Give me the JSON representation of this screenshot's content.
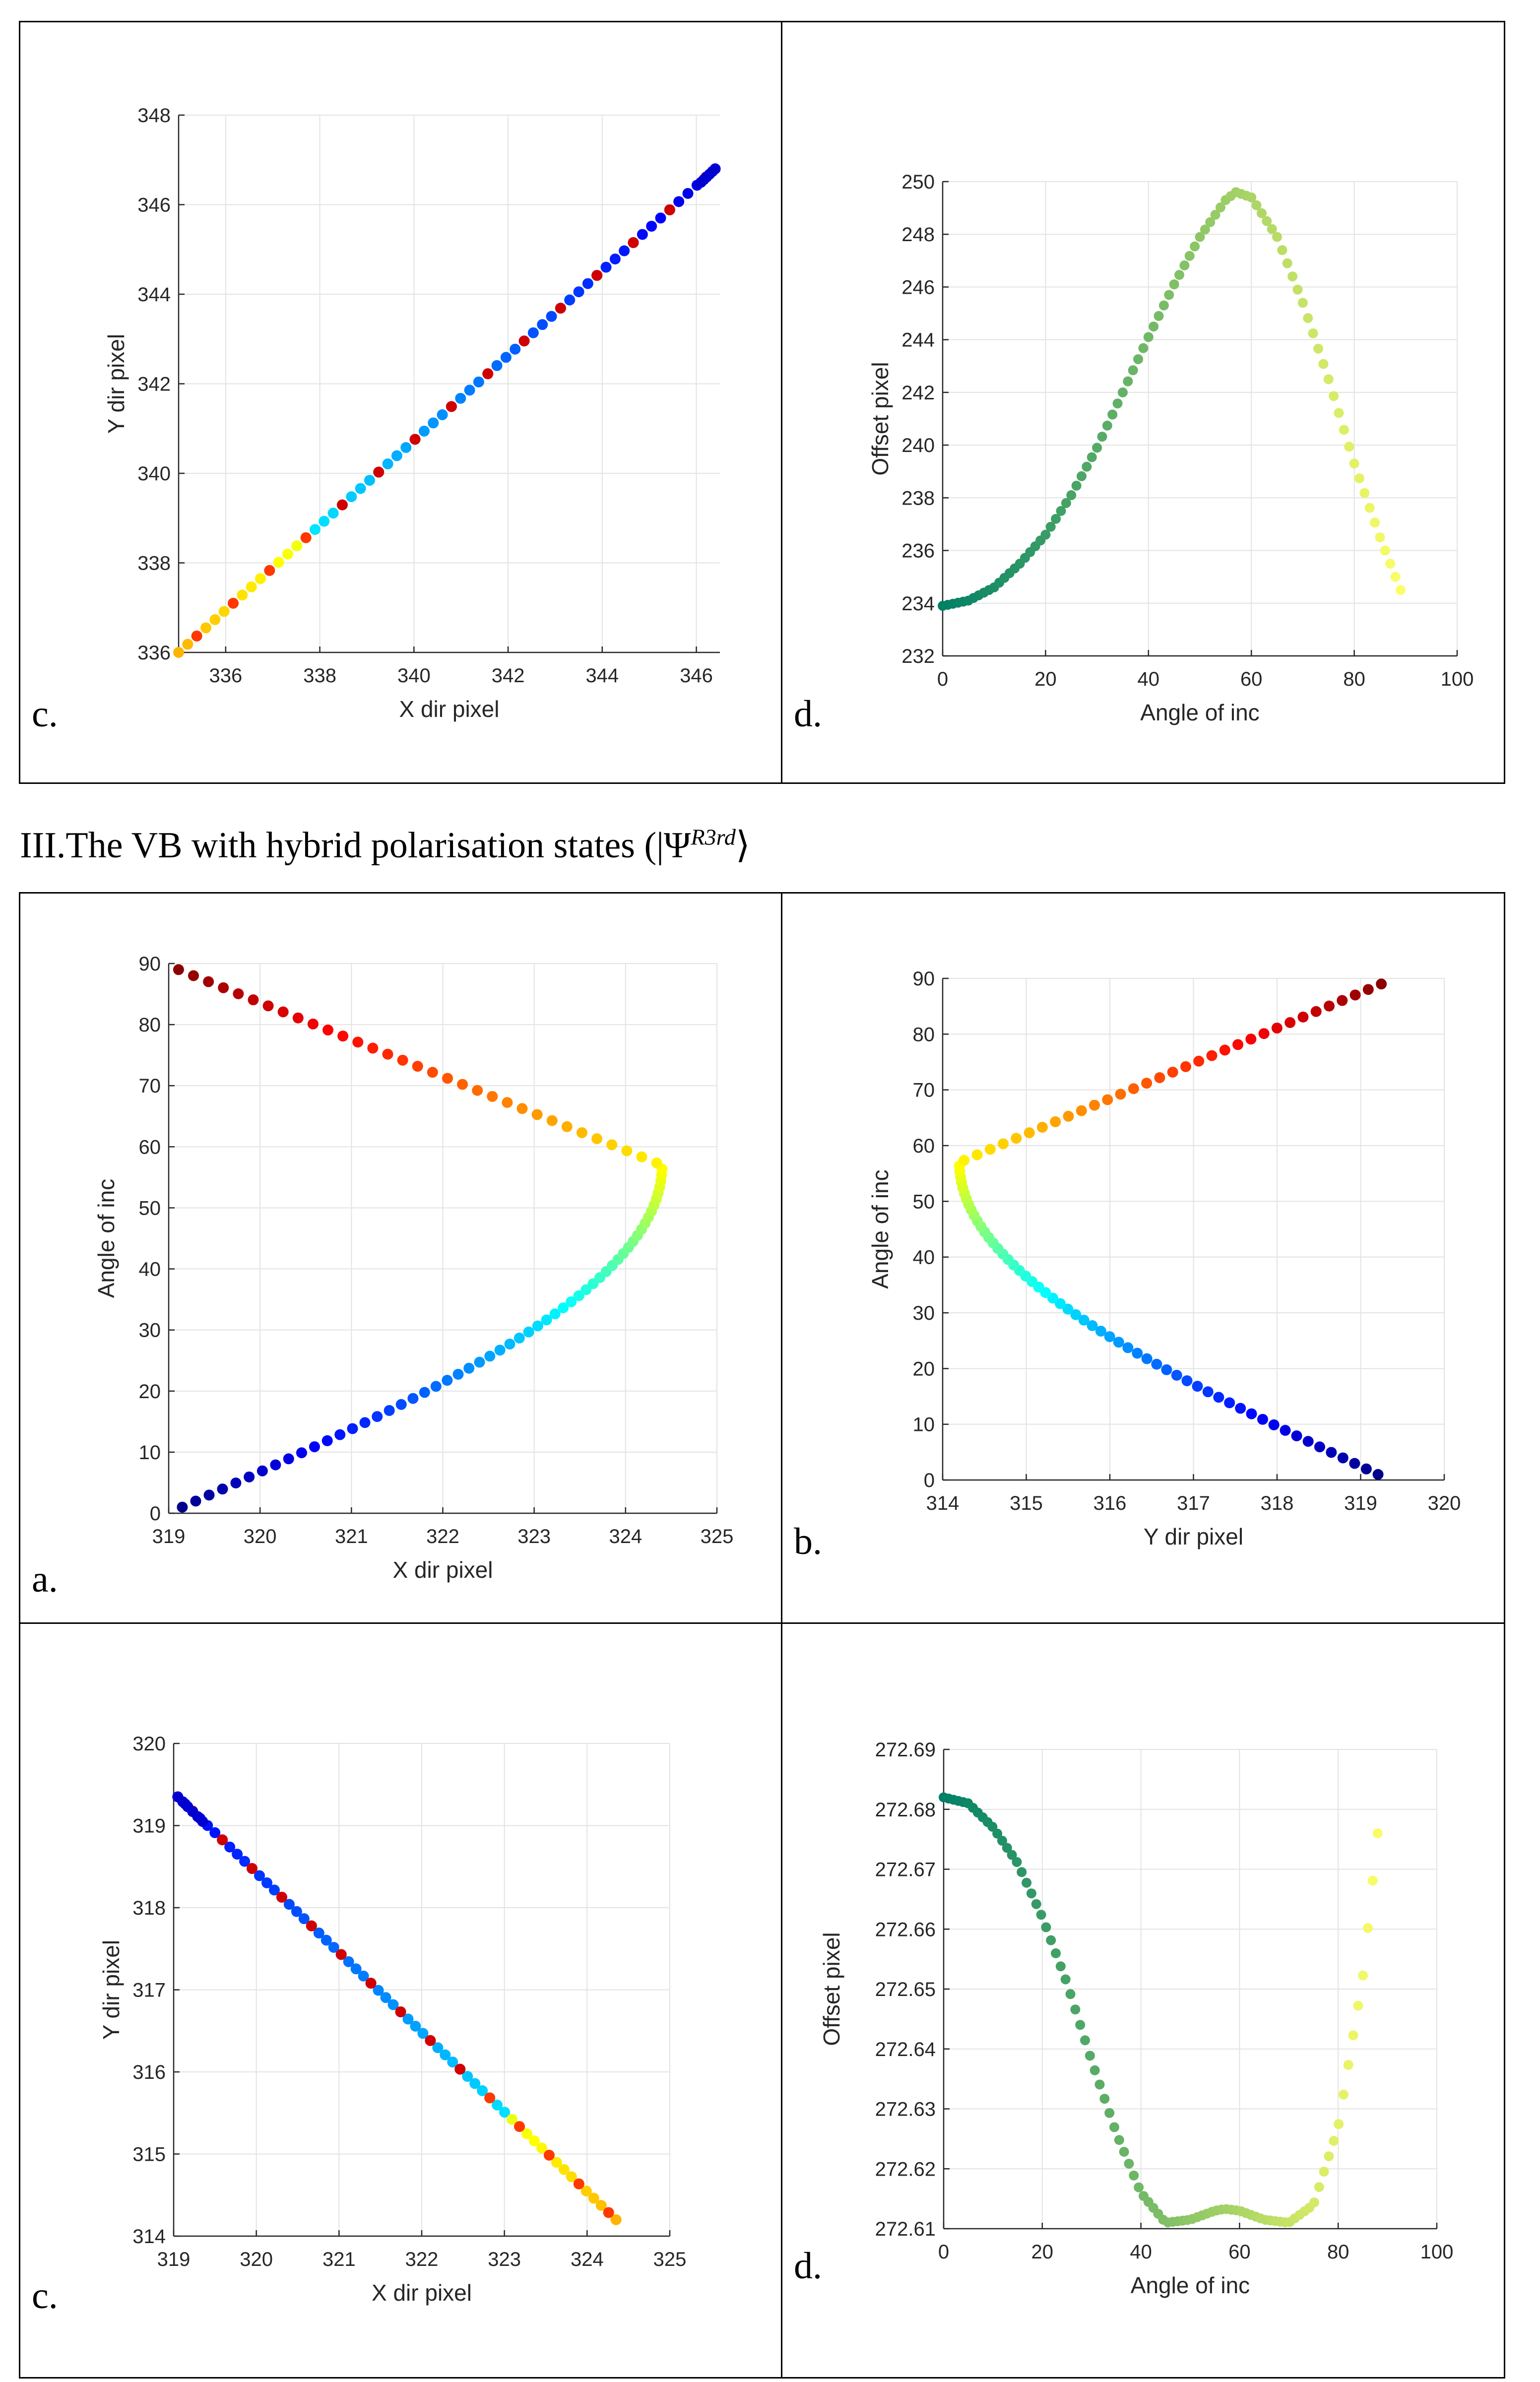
{
  "section_heading": {
    "prefix": "III.The VB with hybrid polarisation states (|Ψ",
    "superscript": "R3rd",
    "suffix": "⟩"
  },
  "panel_labels": {
    "top_c": "c.",
    "top_d": "d.",
    "bottom_a": "a.",
    "bottom_b": "b.",
    "bottom_c": "c.",
    "bottom_d": "d."
  },
  "chart_data": [
    {
      "id": "top-c",
      "type": "scatter",
      "title": "",
      "xlabel": "X dir pixel",
      "ylabel": "Y dir pixel",
      "xlim": [
        335,
        346.5
      ],
      "ylim": [
        336,
        348
      ],
      "xticks": [
        336,
        338,
        340,
        342,
        344,
        346
      ],
      "yticks": [
        336,
        338,
        340,
        342,
        344,
        346,
        348
      ],
      "grid": true,
      "series": [
        {
          "name": "trace",
          "x_start": 335.0,
          "x_end": 346.4,
          "y_start": 336.0,
          "y_end": 346.8,
          "color_scheme": "jet",
          "points": 60
        }
      ]
    },
    {
      "id": "top-d",
      "type": "scatter",
      "title": "",
      "xlabel": "Angle of inc",
      "ylabel": "Offset pixel",
      "xlim": [
        0,
        100
      ],
      "ylim": [
        232,
        250
      ],
      "xticks": [
        0,
        20,
        40,
        60,
        80,
        100
      ],
      "yticks": [
        232,
        234,
        236,
        238,
        240,
        242,
        244,
        246,
        248,
        250
      ],
      "grid": true,
      "series": [
        {
          "name": "offset",
          "x": [
            0,
            5,
            10,
            15,
            20,
            25,
            30,
            35,
            40,
            45,
            50,
            55,
            57,
            60,
            65,
            70,
            75,
            80,
            85,
            89
          ],
          "y": [
            233.9,
            234.1,
            234.6,
            235.5,
            236.6,
            238.1,
            239.9,
            242.0,
            244.1,
            246.1,
            247.9,
            249.3,
            249.6,
            249.4,
            247.9,
            245.4,
            242.5,
            239.3,
            236.5,
            234.5
          ],
          "color_scheme": "summer"
        }
      ]
    },
    {
      "id": "bottom-a",
      "type": "scatter",
      "title": "",
      "xlabel": "X dir pixel",
      "ylabel": "Angle of inc",
      "xlim": [
        319,
        325
      ],
      "ylim": [
        0,
        90
      ],
      "xticks": [
        319,
        320,
        321,
        322,
        323,
        324,
        325
      ],
      "yticks": [
        0,
        10,
        20,
        30,
        40,
        50,
        60,
        70,
        80,
        90
      ],
      "grid": true,
      "series": [
        {
          "name": "x-vs-angle",
          "x_min": 319.0,
          "x_max": 324.4,
          "angle_range": [
            1,
            89
          ],
          "color_scheme": "jet"
        }
      ]
    },
    {
      "id": "bottom-b",
      "type": "scatter",
      "title": "",
      "xlabel": "Y dir pixel",
      "ylabel": "Angle of inc",
      "xlim": [
        314,
        320
      ],
      "ylim": [
        0,
        90
      ],
      "xticks": [
        314,
        315,
        316,
        317,
        318,
        319,
        320
      ],
      "yticks": [
        0,
        10,
        20,
        30,
        40,
        50,
        60,
        70,
        80,
        90
      ],
      "grid": true,
      "series": [
        {
          "name": "y-vs-angle",
          "x_min": 314.2,
          "x_max": 319.35,
          "angle_range": [
            1,
            89
          ],
          "color_scheme": "jet"
        }
      ]
    },
    {
      "id": "bottom-c",
      "type": "scatter",
      "title": "",
      "xlabel": "X dir pixel",
      "ylabel": "Y dir pixel",
      "xlim": [
        319,
        325
      ],
      "ylim": [
        314,
        320
      ],
      "xticks": [
        319,
        320,
        321,
        322,
        323,
        324,
        325
      ],
      "yticks": [
        314,
        315,
        316,
        317,
        318,
        319,
        320
      ],
      "grid": true,
      "series": [
        {
          "name": "trace",
          "x_start": 319.05,
          "x_end": 324.35,
          "y_start": 319.35,
          "y_end": 314.2,
          "color_scheme": "jet",
          "points": 60
        }
      ]
    },
    {
      "id": "bottom-d",
      "type": "scatter",
      "title": "",
      "xlabel": "Angle of inc",
      "ylabel": "Offset pixel",
      "xlim": [
        0,
        100
      ],
      "ylim": [
        272.61,
        272.69
      ],
      "xticks": [
        0,
        20,
        40,
        60,
        80,
        100
      ],
      "yticks": [
        272.61,
        272.62,
        272.63,
        272.64,
        272.65,
        272.66,
        272.67,
        272.68,
        272.69
      ],
      "grid": true,
      "series": [
        {
          "name": "offset",
          "x": [
            0,
            5,
            10,
            15,
            20,
            25,
            30,
            35,
            40,
            45,
            50,
            55,
            57,
            60,
            65,
            70,
            75,
            80,
            85,
            88
          ],
          "y": [
            272.682,
            272.681,
            272.677,
            272.671,
            272.662,
            272.651,
            272.638,
            272.626,
            272.616,
            272.611,
            272.6115,
            272.613,
            272.6133,
            272.613,
            272.6115,
            272.611,
            272.614,
            272.627,
            272.652,
            272.676
          ],
          "color_scheme": "summer"
        }
      ]
    }
  ]
}
